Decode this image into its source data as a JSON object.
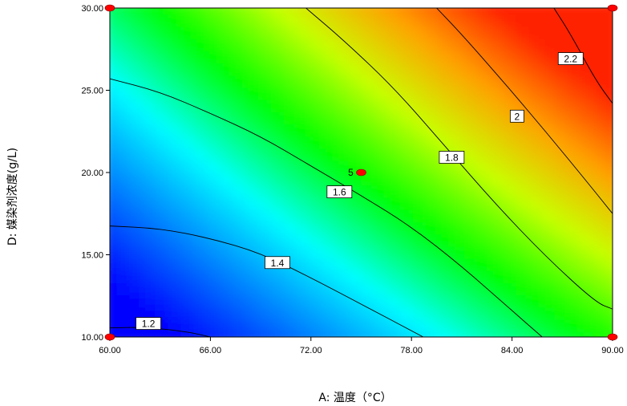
{
  "chart_data": {
    "type": "contour",
    "xlabel": "A: 温度（°C）",
    "ylabel": "D: 媒染剂浓度(g/L)",
    "xlim": [
      60,
      90
    ],
    "ylim": [
      10,
      30
    ],
    "x_ticks": [
      "60.00",
      "66.00",
      "72.00",
      "78.00",
      "84.00",
      "90.00"
    ],
    "y_ticks": [
      "10.00",
      "15.00",
      "20.00",
      "25.00",
      "30.00"
    ],
    "contour_levels": [
      {
        "label": "1.2",
        "points": [
          [
            60,
            10.55
          ],
          [
            62,
            10.6
          ],
          [
            64.5,
            10.35
          ],
          [
            66,
            10.0
          ]
        ],
        "label_at": [
          62.3,
          10.8
        ]
      },
      {
        "label": "1.4",
        "points": [
          [
            60,
            16.75
          ],
          [
            63,
            16.6
          ],
          [
            66,
            16.0
          ],
          [
            69,
            15.1
          ],
          [
            72,
            13.6
          ],
          [
            75,
            12.0
          ],
          [
            78.7,
            10.0
          ]
        ],
        "label_at": [
          70.0,
          14.5
        ]
      },
      {
        "label": "1.6",
        "points": [
          [
            60,
            25.7
          ],
          [
            63,
            24.9
          ],
          [
            66,
            23.6
          ],
          [
            69,
            22.2
          ],
          [
            72,
            20.4
          ],
          [
            75,
            18.6
          ],
          [
            78,
            16.7
          ],
          [
            81,
            14.3
          ],
          [
            84,
            11.6
          ],
          [
            85.8,
            10.0
          ]
        ],
        "label_at": [
          73.7,
          18.8
        ]
      },
      {
        "label": "1.8",
        "points": [
          [
            71.7,
            30.0
          ],
          [
            74,
            28.0
          ],
          [
            77,
            25.1
          ],
          [
            80,
            21.6
          ],
          [
            83,
            18.1
          ],
          [
            86,
            14.9
          ],
          [
            89,
            12.1
          ],
          [
            90,
            11.7
          ]
        ],
        "label_at": [
          80.4,
          20.9
        ]
      },
      {
        "label": "2",
        "points": [
          [
            79.5,
            30.0
          ],
          [
            81,
            28.4
          ],
          [
            83.5,
            25.5
          ],
          [
            86,
            22.5
          ],
          [
            88.5,
            19.4
          ],
          [
            90,
            17.5
          ]
        ],
        "label_at": [
          84.3,
          23.4
        ]
      },
      {
        "label": "2.2",
        "points": [
          [
            86.5,
            30.0
          ],
          [
            87.5,
            28.4
          ],
          [
            89,
            25.6
          ],
          [
            90,
            24.2
          ]
        ],
        "label_at": [
          87.5,
          26.9
        ]
      }
    ],
    "design_points": [
      {
        "x": 60,
        "y": 10
      },
      {
        "x": 60,
        "y": 30
      },
      {
        "x": 90,
        "y": 10
      },
      {
        "x": 90,
        "y": 30
      },
      {
        "x": 75,
        "y": 20,
        "label": "5"
      }
    ],
    "colors": {
      "low": "#0000ff",
      "mid_low": "#00ffff",
      "mid": "#00ff00",
      "mid_high": "#c8ff00",
      "high_orange": "#ffa000",
      "max": "#ff2000",
      "point": "#ff0000"
    }
  }
}
